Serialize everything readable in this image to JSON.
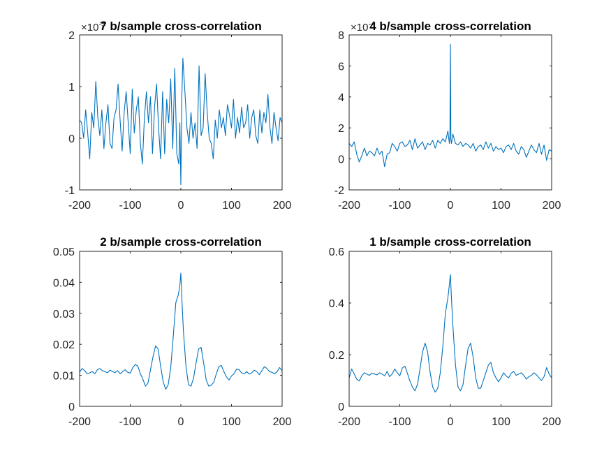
{
  "colors": {
    "series": "#0072BD",
    "axis": "#262626",
    "background": "#ffffff"
  },
  "chart_data": [
    {
      "type": "line",
      "title": "7 b/sample cross-correlation",
      "xlabel": "",
      "ylabel": "",
      "xlim": [
        -200,
        200
      ],
      "ylim": [
        -1,
        2
      ],
      "xticks": [
        "-200",
        "-100",
        "0",
        "100",
        "200"
      ],
      "yticks": [
        "-1",
        "0",
        "1",
        "2"
      ],
      "exponent_label": "×10^-5",
      "grid": false,
      "series": [
        {
          "x": [
            -200,
            -196,
            -192,
            -188,
            -184,
            -180,
            -176,
            -172,
            -168,
            -164,
            -160,
            -156,
            -152,
            -148,
            -144,
            -140,
            -136,
            -132,
            -128,
            -124,
            -120,
            -116,
            -112,
            -108,
            -104,
            -100,
            -96,
            -92,
            -88,
            -84,
            -80,
            -76,
            -72,
            -68,
            -64,
            -60,
            -56,
            -52,
            -48,
            -44,
            -40,
            -36,
            -32,
            -28,
            -24,
            -20,
            -16,
            -12,
            -8,
            -4,
            -2,
            0,
            2,
            4,
            8,
            12,
            16,
            20,
            24,
            28,
            32,
            36,
            40,
            44,
            48,
            52,
            56,
            60,
            64,
            68,
            72,
            76,
            80,
            84,
            88,
            92,
            96,
            100,
            104,
            108,
            112,
            116,
            120,
            124,
            128,
            132,
            136,
            140,
            144,
            148,
            152,
            156,
            160,
            164,
            168,
            172,
            176,
            180,
            184,
            188,
            192,
            196,
            200
          ],
          "y": [
            0.35,
            0.3,
            0.0,
            0.55,
            0.1,
            -0.4,
            0.5,
            0.2,
            1.1,
            0.4,
            0.05,
            0.55,
            -0.2,
            0.3,
            0.65,
            -0.1,
            -0.2,
            0.4,
            0.55,
            1.05,
            0.35,
            -0.25,
            0.5,
            0.9,
            0.3,
            -0.3,
            0.95,
            0.1,
            0.55,
            0.8,
            -0.1,
            -0.5,
            0.4,
            0.9,
            0.3,
            0.8,
            -0.3,
            0.6,
            1.05,
            0.2,
            -0.4,
            0.9,
            -0.3,
            0.75,
            0.3,
            1.15,
            -0.2,
            1.35,
            -0.3,
            -0.5,
            0.3,
            -0.9,
            0.8,
            1.55,
            0.9,
            0.2,
            -0.1,
            0.5,
            0.0,
            0.3,
            -0.2,
            1.4,
            0.05,
            0.2,
            1.25,
            0.5,
            0.0,
            -0.1,
            -0.4,
            0.35,
            0.0,
            0.55,
            0.2,
            0.4,
            0.05,
            0.65,
            0.45,
            0.2,
            0.75,
            0.0,
            0.4,
            0.1,
            0.6,
            0.2,
            0.3,
            0.65,
            0.0,
            0.4,
            0.55,
            0.05,
            -0.1,
            0.55,
            0.1,
            0.5,
            0.3,
            0.85,
            0.2,
            -0.1,
            0.5,
            0.2,
            -0.05,
            0.4,
            0.3
          ]
        }
      ]
    },
    {
      "type": "line",
      "title": "4 b/sample cross-correlation",
      "xlabel": "",
      "ylabel": "",
      "xlim": [
        -200,
        200
      ],
      "ylim": [
        -2,
        8
      ],
      "xticks": [
        "-200",
        "-100",
        "0",
        "100",
        "200"
      ],
      "yticks": [
        "-2",
        "0",
        "2",
        "4",
        "6",
        "8"
      ],
      "exponent_label": "×10^-4",
      "grid": false,
      "series": [
        {
          "x": [
            -200,
            -195,
            -190,
            -185,
            -180,
            -175,
            -170,
            -165,
            -160,
            -155,
            -150,
            -145,
            -140,
            -135,
            -130,
            -125,
            -120,
            -115,
            -110,
            -105,
            -100,
            -95,
            -90,
            -85,
            -80,
            -75,
            -70,
            -65,
            -60,
            -55,
            -50,
            -45,
            -40,
            -35,
            -30,
            -25,
            -20,
            -15,
            -10,
            -5,
            -2,
            -1,
            0,
            1,
            2,
            5,
            10,
            15,
            20,
            25,
            30,
            35,
            40,
            45,
            50,
            55,
            60,
            65,
            70,
            75,
            80,
            85,
            90,
            95,
            100,
            105,
            110,
            115,
            120,
            125,
            130,
            135,
            140,
            145,
            150,
            155,
            160,
            165,
            170,
            175,
            180,
            185,
            190,
            195,
            200
          ],
          "y": [
            1.0,
            0.8,
            1.1,
            0.3,
            -0.2,
            0.2,
            0.7,
            0.2,
            0.5,
            0.4,
            0.2,
            0.7,
            0.3,
            0.5,
            -0.5,
            0.3,
            0.4,
            1.0,
            0.8,
            0.5,
            1.0,
            1.1,
            0.8,
            0.9,
            1.2,
            0.6,
            1.3,
            0.7,
            0.9,
            1.1,
            0.6,
            1.0,
            0.9,
            1.2,
            0.7,
            1.2,
            1.0,
            1.3,
            1.1,
            1.8,
            1.0,
            1.5,
            7.4,
            1.3,
            1.0,
            1.6,
            1.0,
            0.9,
            1.1,
            0.8,
            1.0,
            0.9,
            0.7,
            1.0,
            0.5,
            0.8,
            0.9,
            0.6,
            1.1,
            0.7,
            1.0,
            0.5,
            0.8,
            0.6,
            0.7,
            0.4,
            0.8,
            0.9,
            0.6,
            1.0,
            0.5,
            0.3,
            0.8,
            0.6,
            0.1,
            0.5,
            0.9,
            0.6,
            0.4,
            1.0,
            0.3,
            0.9,
            -0.1,
            0.6,
            0.5
          ]
        }
      ]
    },
    {
      "type": "line",
      "title": "2 b/sample cross-correlation",
      "xlabel": "",
      "ylabel": "",
      "xlim": [
        -200,
        200
      ],
      "ylim": [
        0,
        0.05
      ],
      "xticks": [
        "-200",
        "-100",
        "0",
        "100",
        "200"
      ],
      "yticks": [
        "0",
        "0.01",
        "0.02",
        "0.03",
        "0.04",
        "0.05"
      ],
      "grid": false,
      "series": [
        {
          "x": [
            -200,
            -195,
            -190,
            -185,
            -180,
            -175,
            -170,
            -165,
            -160,
            -155,
            -150,
            -145,
            -140,
            -135,
            -130,
            -125,
            -120,
            -115,
            -110,
            -105,
            -100,
            -95,
            -90,
            -85,
            -80,
            -75,
            -70,
            -65,
            -60,
            -55,
            -50,
            -45,
            -40,
            -35,
            -30,
            -25,
            -20,
            -15,
            -10,
            -5,
            -2,
            0,
            2,
            5,
            10,
            15,
            20,
            25,
            30,
            35,
            40,
            45,
            50,
            55,
            60,
            65,
            70,
            75,
            80,
            85,
            90,
            95,
            100,
            105,
            110,
            115,
            120,
            125,
            130,
            135,
            140,
            145,
            150,
            155,
            160,
            165,
            170,
            175,
            180,
            185,
            190,
            195,
            200
          ],
          "y": [
            0.011,
            0.0122,
            0.0115,
            0.0105,
            0.0108,
            0.0112,
            0.0105,
            0.0118,
            0.0122,
            0.0115,
            0.0112,
            0.0108,
            0.0117,
            0.0112,
            0.0109,
            0.0115,
            0.0105,
            0.0112,
            0.0118,
            0.011,
            0.0107,
            0.0125,
            0.0135,
            0.013,
            0.0105,
            0.0088,
            0.0065,
            0.0075,
            0.0118,
            0.016,
            0.0195,
            0.0185,
            0.013,
            0.008,
            0.0055,
            0.007,
            0.0125,
            0.0225,
            0.0335,
            0.036,
            0.039,
            0.043,
            0.035,
            0.0245,
            0.013,
            0.007,
            0.0065,
            0.009,
            0.014,
            0.0185,
            0.019,
            0.014,
            0.0085,
            0.0065,
            0.0068,
            0.0078,
            0.0105,
            0.0128,
            0.0132,
            0.0112,
            0.0095,
            0.0085,
            0.0098,
            0.0105,
            0.012,
            0.0118,
            0.0108,
            0.0105,
            0.0112,
            0.0104,
            0.0108,
            0.0117,
            0.0112,
            0.0102,
            0.0115,
            0.0128,
            0.0122,
            0.0112,
            0.011,
            0.0105,
            0.0112,
            0.0125,
            0.0115
          ]
        }
      ]
    },
    {
      "type": "line",
      "title": "1 b/sample cross-correlation",
      "xlabel": "",
      "ylabel": "",
      "xlim": [
        -200,
        200
      ],
      "ylim": [
        0,
        0.6
      ],
      "xticks": [
        "-200",
        "-100",
        "0",
        "100",
        "200"
      ],
      "yticks": [
        "0",
        "0.2",
        "0.4",
        "0.6"
      ],
      "grid": false,
      "series": [
        {
          "x": [
            -200,
            -195,
            -190,
            -185,
            -180,
            -175,
            -170,
            -165,
            -160,
            -155,
            -150,
            -145,
            -140,
            -135,
            -130,
            -125,
            -120,
            -115,
            -110,
            -105,
            -100,
            -95,
            -90,
            -85,
            -80,
            -75,
            -70,
            -65,
            -60,
            -55,
            -50,
            -45,
            -40,
            -35,
            -30,
            -25,
            -20,
            -15,
            -10,
            -5,
            -2,
            0,
            2,
            5,
            10,
            15,
            20,
            25,
            30,
            35,
            40,
            45,
            50,
            55,
            60,
            65,
            70,
            75,
            80,
            85,
            90,
            95,
            100,
            105,
            110,
            115,
            120,
            125,
            130,
            135,
            140,
            145,
            150,
            155,
            160,
            165,
            170,
            175,
            180,
            185,
            190,
            195,
            200
          ],
          "y": [
            0.11,
            0.145,
            0.125,
            0.105,
            0.098,
            0.118,
            0.13,
            0.125,
            0.12,
            0.128,
            0.125,
            0.122,
            0.13,
            0.125,
            0.118,
            0.135,
            0.115,
            0.125,
            0.145,
            0.13,
            0.118,
            0.148,
            0.155,
            0.128,
            0.098,
            0.075,
            0.06,
            0.085,
            0.145,
            0.21,
            0.245,
            0.21,
            0.13,
            0.075,
            0.055,
            0.07,
            0.13,
            0.23,
            0.36,
            0.42,
            0.47,
            0.51,
            0.42,
            0.31,
            0.16,
            0.075,
            0.06,
            0.085,
            0.16,
            0.225,
            0.245,
            0.19,
            0.11,
            0.07,
            0.07,
            0.1,
            0.13,
            0.16,
            0.17,
            0.13,
            0.11,
            0.095,
            0.11,
            0.13,
            0.118,
            0.11,
            0.128,
            0.135,
            0.12,
            0.125,
            0.13,
            0.12,
            0.105,
            0.115,
            0.12,
            0.13,
            0.122,
            0.11,
            0.1,
            0.115,
            0.15,
            0.125,
            0.11
          ]
        }
      ]
    }
  ]
}
